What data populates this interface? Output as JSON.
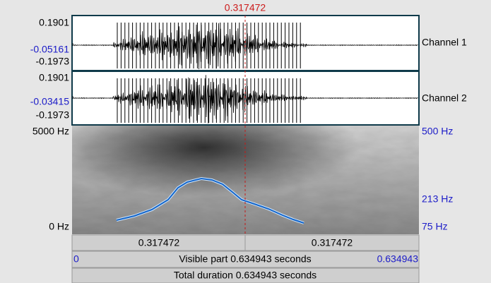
{
  "cursor": {
    "time": "0.317472"
  },
  "channels": [
    {
      "name": "Channel 1",
      "top": "0.1901",
      "middle": "-0.05161",
      "bottom": "-0.1973"
    },
    {
      "name": "Channel 2",
      "top": "0.1901",
      "middle": "-0.03415",
      "bottom": "-0.1973"
    }
  ],
  "spectrogram": {
    "top_frequency": "5000 Hz",
    "bottom_frequency": "0 Hz",
    "pitch_labels": [
      "500 Hz",
      "213 Hz",
      "75 Hz"
    ]
  },
  "time_bar": {
    "left": "0.317472",
    "right": "0.317472"
  },
  "visible_bar": {
    "start": "0",
    "label": "Visible part 0.634943 seconds",
    "end": "0.634943"
  },
  "total_bar": {
    "label": "Total duration 0.634943 seconds"
  }
}
